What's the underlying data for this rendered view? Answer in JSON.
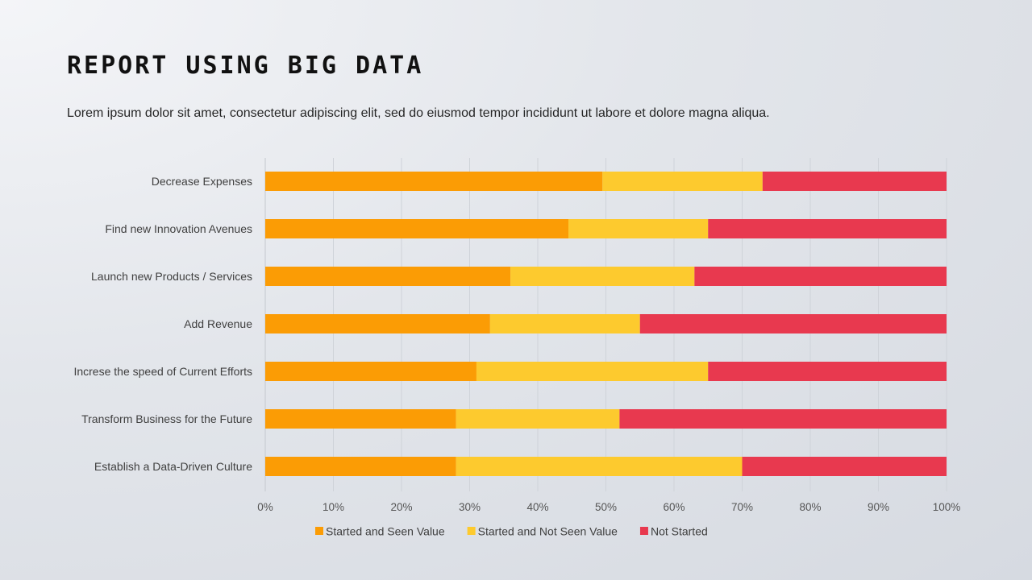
{
  "slide": {
    "title": "REPORT USING BIG DATA",
    "subtitle": "Lorem ipsum dolor sit amet, consectetur adipiscing elit, sed do eiusmod tempor incididunt ut labore et dolore magna aliqua."
  },
  "chart_data": {
    "type": "bar",
    "orientation": "horizontal",
    "stacked": "percent",
    "categories": [
      "Decrease Expenses",
      "Find new Innovation Avenues",
      "Launch new Products / Services",
      "Add Revenue",
      "Increse the speed of Current Efforts",
      "Transform Business for the Future",
      "Establish a Data-Driven Culture"
    ],
    "series": [
      {
        "name": "Started and Seen Value",
        "color": "#fb9c05",
        "values": [
          49.5,
          44.5,
          36,
          33,
          31,
          28,
          28
        ]
      },
      {
        "name": "Started and  Not Seen Value",
        "color": "#fdca2e",
        "values": [
          23.5,
          20.5,
          27,
          22,
          34,
          24,
          42
        ]
      },
      {
        "name": "Not Started",
        "color": "#e8394f",
        "values": [
          27,
          35,
          37,
          45,
          35,
          48,
          30
        ]
      }
    ],
    "x_ticks": [
      "0%",
      "10%",
      "20%",
      "30%",
      "40%",
      "50%",
      "60%",
      "70%",
      "80%",
      "90%",
      "100%"
    ],
    "xlim": [
      0,
      100
    ],
    "grid": true,
    "legend_position": "bottom"
  }
}
